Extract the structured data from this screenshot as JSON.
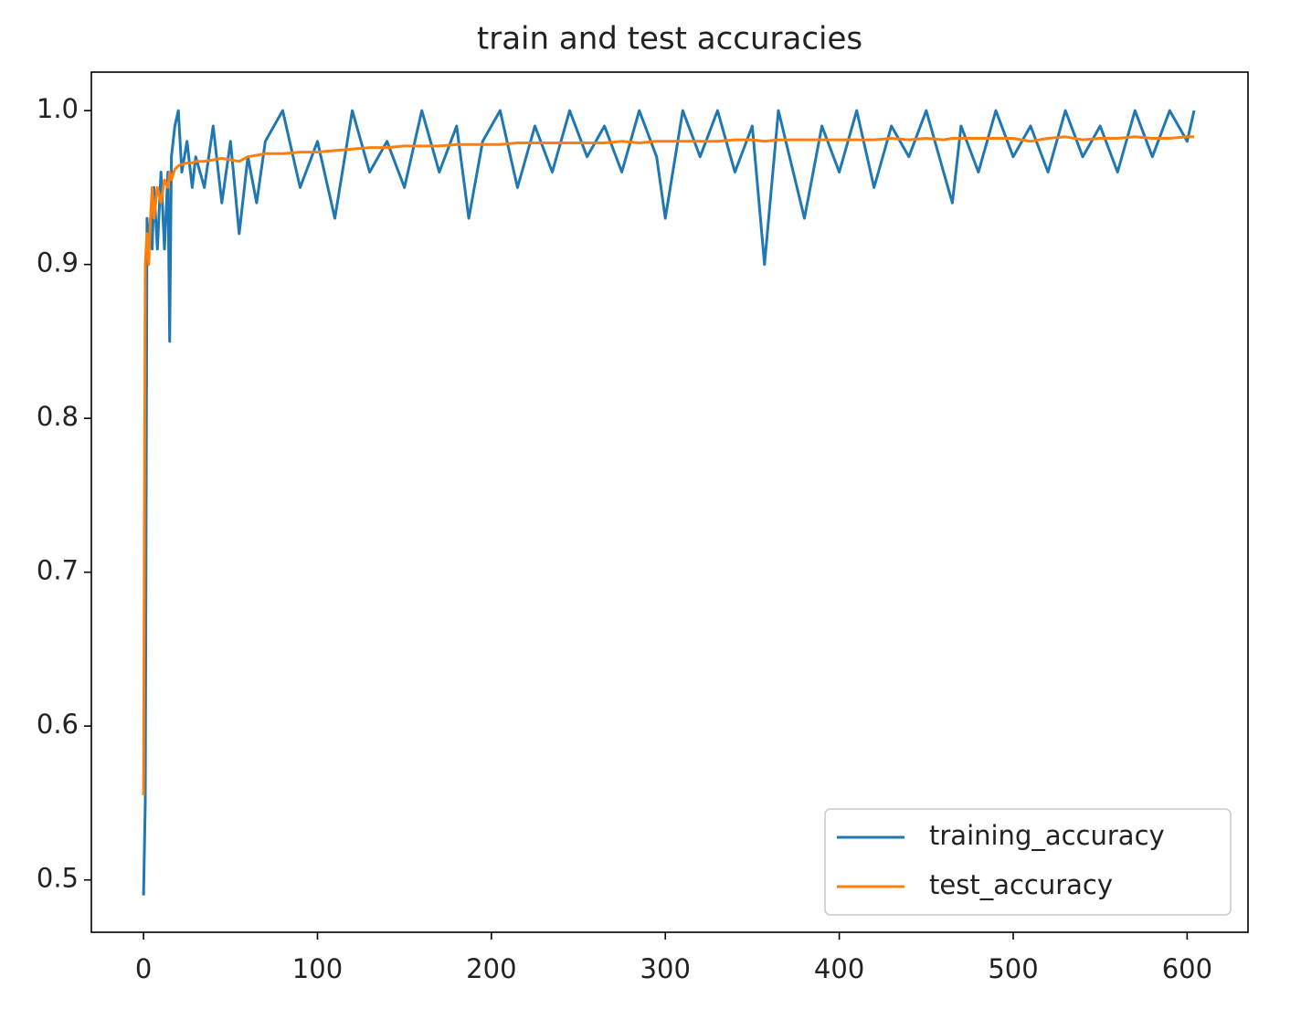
{
  "chart_data": {
    "type": "line",
    "title": "train and test accuracies",
    "x": [
      0,
      1,
      2,
      3,
      4,
      5,
      6,
      8,
      10,
      12,
      14,
      15,
      16,
      18,
      20,
      22,
      25,
      28,
      30,
      35,
      40,
      45,
      50,
      55,
      60,
      65,
      70,
      80,
      90,
      100,
      110,
      120,
      130,
      140,
      150,
      160,
      170,
      180,
      187,
      195,
      205,
      215,
      225,
      235,
      245,
      255,
      265,
      275,
      285,
      295,
      300,
      310,
      320,
      330,
      340,
      350,
      357,
      365,
      380,
      390,
      400,
      410,
      420,
      430,
      440,
      450,
      460,
      465,
      470,
      480,
      490,
      500,
      510,
      520,
      530,
      540,
      550,
      560,
      570,
      580,
      590,
      600,
      604
    ],
    "series": [
      {
        "name": "training_accuracy",
        "color": "#1f77b4",
        "values": [
          0.49,
          0.55,
          0.93,
          0.91,
          0.93,
          0.91,
          0.95,
          0.91,
          0.96,
          0.91,
          0.96,
          0.85,
          0.97,
          0.99,
          1.0,
          0.96,
          0.98,
          0.95,
          0.97,
          0.95,
          0.99,
          0.94,
          0.98,
          0.92,
          0.97,
          0.94,
          0.98,
          1.0,
          0.95,
          0.98,
          0.93,
          1.0,
          0.96,
          0.98,
          0.95,
          1.0,
          0.96,
          0.99,
          0.93,
          0.98,
          1.0,
          0.95,
          0.99,
          0.96,
          1.0,
          0.97,
          0.99,
          0.96,
          1.0,
          0.97,
          0.93,
          1.0,
          0.97,
          1.0,
          0.96,
          0.99,
          0.9,
          1.0,
          0.93,
          0.99,
          0.96,
          1.0,
          0.95,
          0.99,
          0.97,
          1.0,
          0.96,
          0.94,
          0.99,
          0.96,
          1.0,
          0.97,
          0.99,
          0.96,
          1.0,
          0.97,
          0.99,
          0.96,
          1.0,
          0.97,
          1.0,
          0.98,
          1.0
        ]
      },
      {
        "name": "test_accuracy",
        "color": "#ff7f0e",
        "values": [
          0.555,
          0.9,
          0.92,
          0.9,
          0.93,
          0.95,
          0.93,
          0.95,
          0.94,
          0.955,
          0.95,
          0.96,
          0.955,
          0.962,
          0.964,
          0.965,
          0.966,
          0.966,
          0.967,
          0.967,
          0.968,
          0.969,
          0.968,
          0.967,
          0.97,
          0.971,
          0.972,
          0.972,
          0.973,
          0.973,
          0.974,
          0.975,
          0.976,
          0.976,
          0.977,
          0.977,
          0.977,
          0.978,
          0.978,
          0.978,
          0.978,
          0.979,
          0.979,
          0.979,
          0.979,
          0.979,
          0.979,
          0.98,
          0.979,
          0.98,
          0.98,
          0.98,
          0.98,
          0.98,
          0.981,
          0.981,
          0.98,
          0.981,
          0.981,
          0.981,
          0.981,
          0.981,
          0.981,
          0.982,
          0.981,
          0.982,
          0.981,
          0.982,
          0.982,
          0.982,
          0.982,
          0.982,
          0.98,
          0.982,
          0.983,
          0.981,
          0.982,
          0.982,
          0.983,
          0.982,
          0.982,
          0.983,
          0.983
        ]
      }
    ],
    "xlim": [
      -30,
      635
    ],
    "ylim": [
      0.466,
      1.025
    ],
    "xticks": [
      0,
      100,
      200,
      300,
      400,
      500,
      600
    ],
    "yticks": [
      0.5,
      0.6,
      0.7,
      0.8,
      0.9,
      {
        "value": 1,
        "label": "1.0"
      }
    ],
    "legend": "lower right"
  }
}
